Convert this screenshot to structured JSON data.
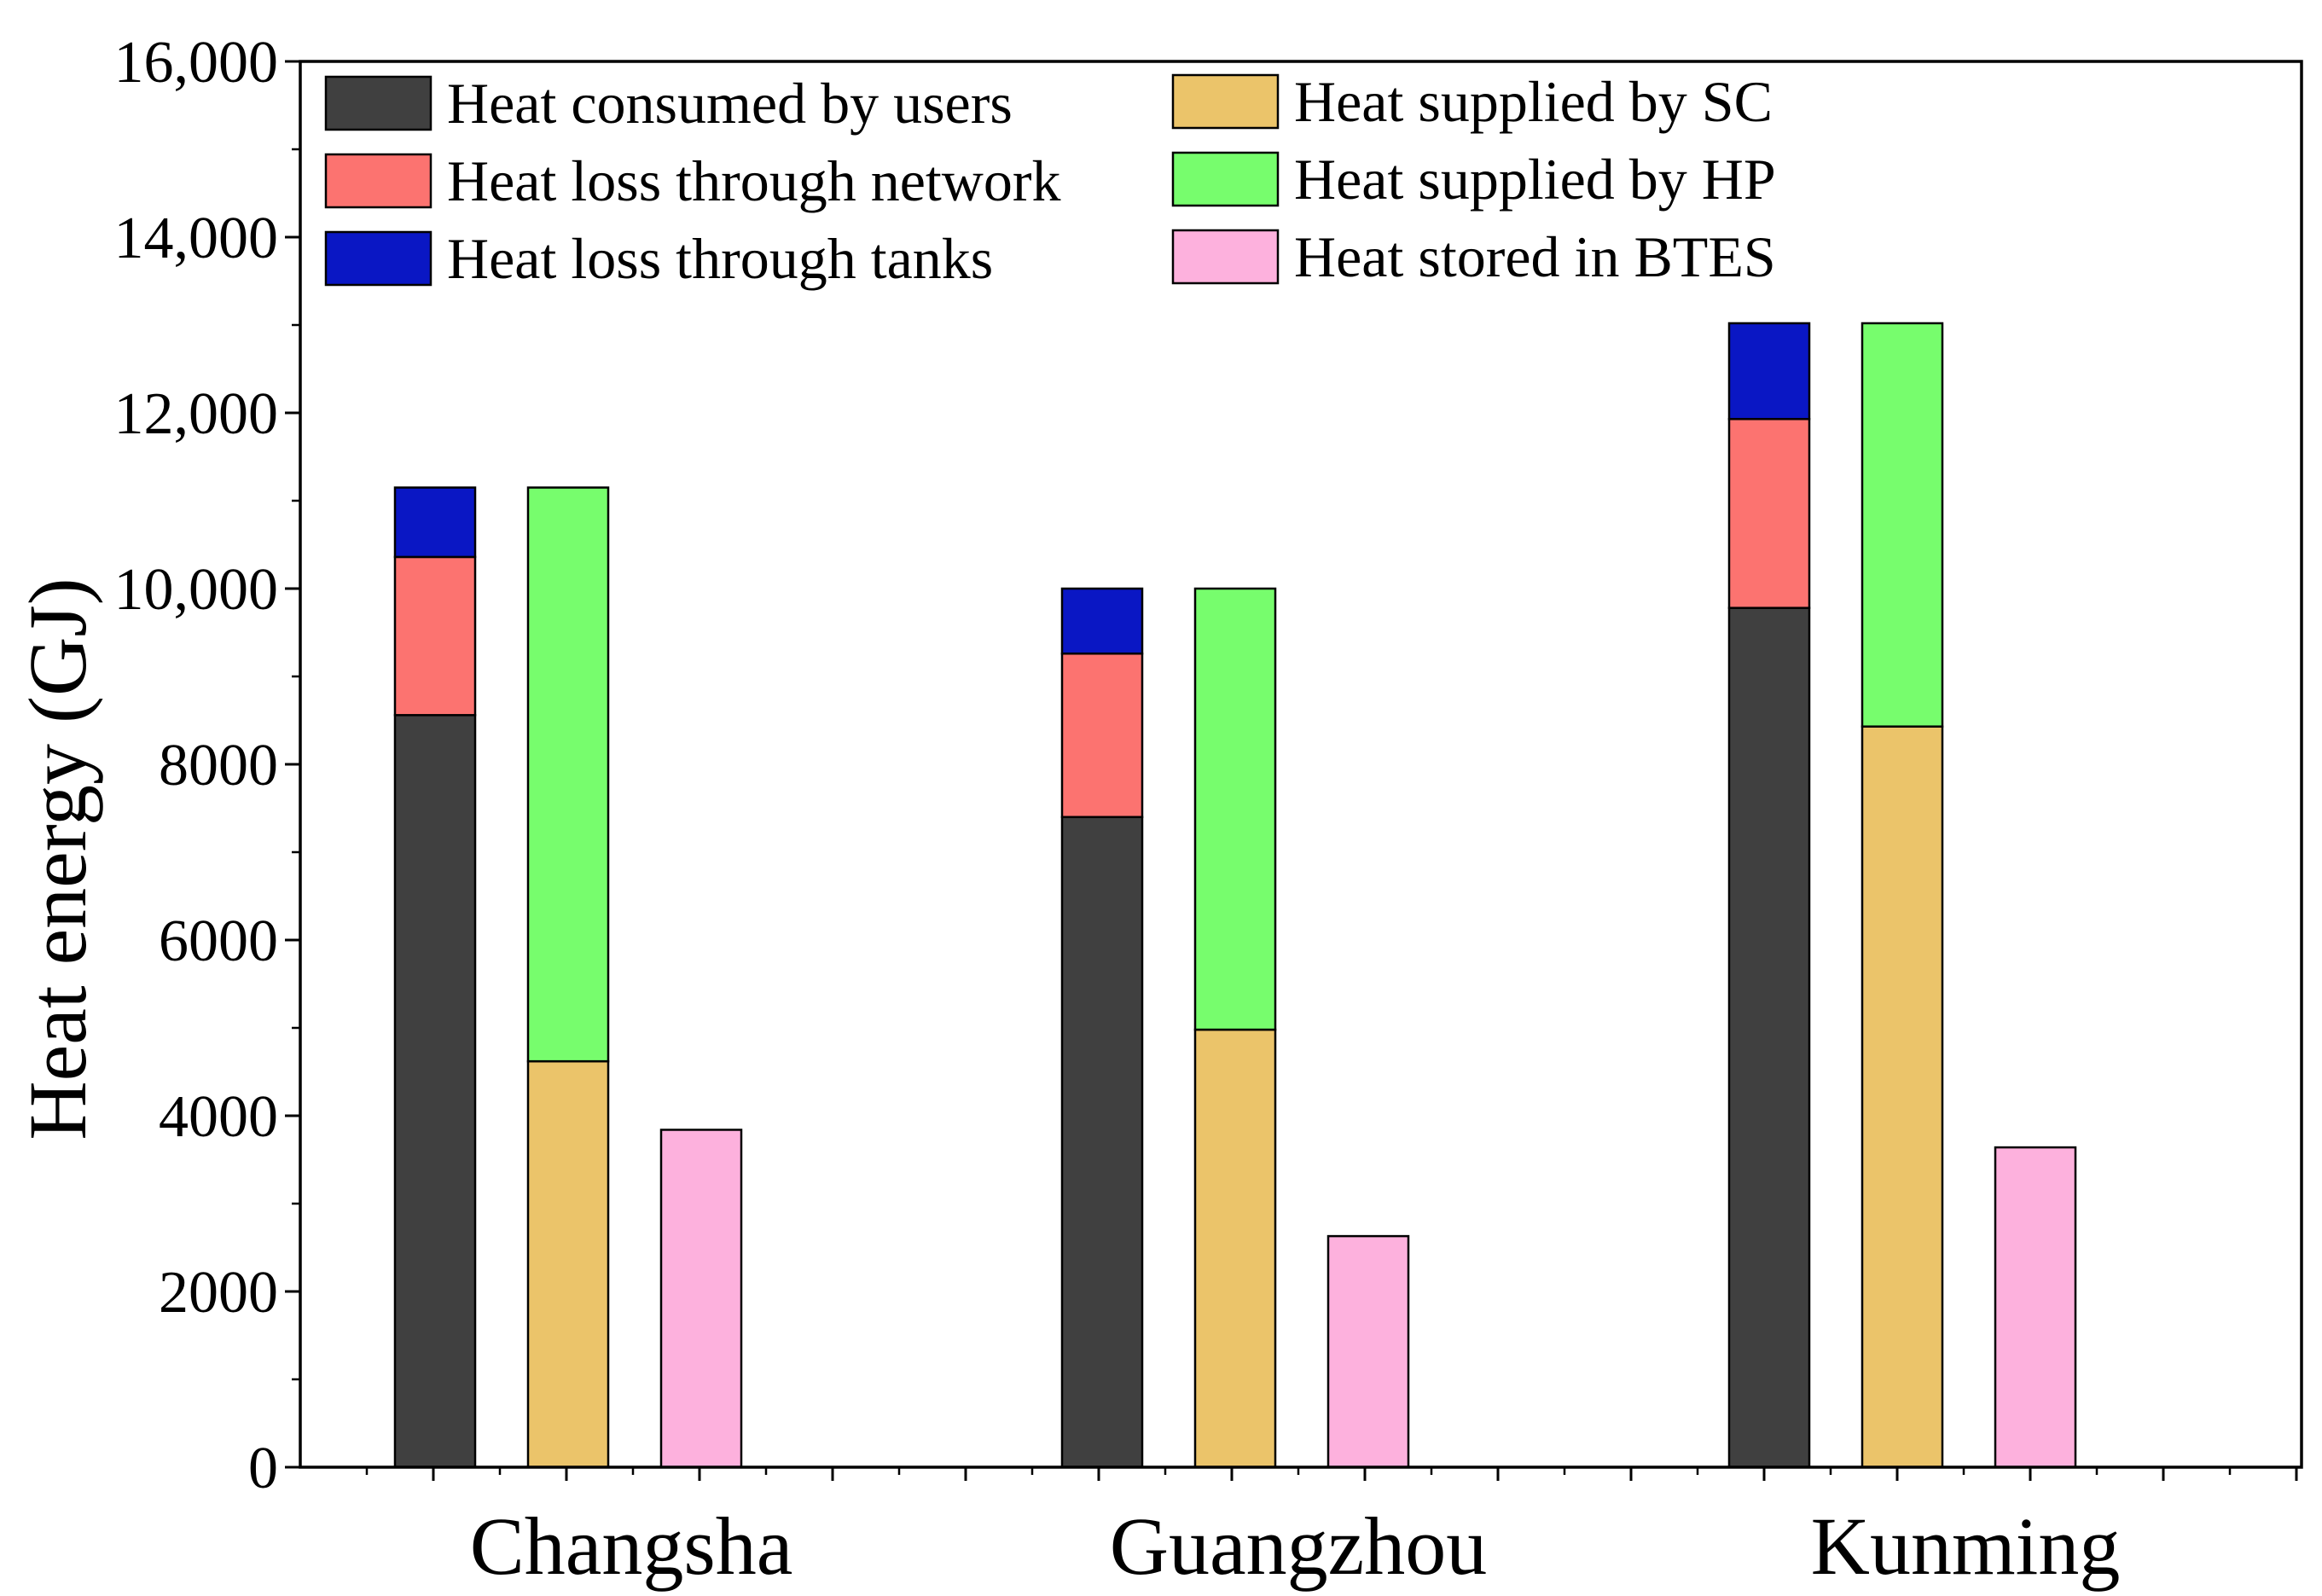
{
  "chart_data": {
    "type": "bar",
    "subtype": "grouped-stacked",
    "title": "",
    "xlabel": "",
    "ylabel": "Heat energy (GJ)",
    "ylim": [
      0,
      16000
    ],
    "yticks": [
      0,
      2000,
      4000,
      6000,
      8000,
      10000,
      12000,
      14000,
      16000
    ],
    "ytick_labels": [
      "0",
      "2000",
      "4000",
      "6000",
      "8000",
      "10,000",
      "12,000",
      "14,000",
      "16,000"
    ],
    "categories": [
      "Changsha",
      "Guangzhou",
      "Kunming"
    ],
    "colors": {
      "consumed": "#404040",
      "network_loss": "#fc7370",
      "tank_loss": "#0a17c4",
      "sc": "#ebc46a",
      "hp": "#77fd6d",
      "btes": "#fdb1dd"
    },
    "groups": [
      {
        "stack": "demand",
        "series": [
          {
            "key": "consumed",
            "name": "Heat consumed by users",
            "values": [
              8560,
              7400,
              9780
            ]
          },
          {
            "key": "network_loss",
            "name": "Heat loss through network",
            "values": [
              1800,
              1860,
              2150
            ]
          },
          {
            "key": "tank_loss",
            "name": "Heat loss through tanks",
            "values": [
              790,
              740,
              1090
            ]
          }
        ]
      },
      {
        "stack": "supply",
        "series": [
          {
            "key": "sc",
            "name": "Heat supplied by SC",
            "values": [
              4620,
              4980,
              8430
            ]
          },
          {
            "key": "hp",
            "name": "Heat supplied by HP",
            "values": [
              6530,
              5020,
              4590
            ]
          }
        ]
      },
      {
        "stack": "storage",
        "series": [
          {
            "key": "btes",
            "name": "Heat stored in BTES",
            "values": [
              3840,
              2630,
              3640
            ]
          }
        ]
      }
    ],
    "legend": [
      {
        "key": "consumed",
        "label": "Heat consumed by users"
      },
      {
        "key": "network_loss",
        "label": "Heat loss through network"
      },
      {
        "key": "tank_loss",
        "label": "Heat loss through tanks"
      },
      {
        "key": "sc",
        "label": "Heat supplied by SC"
      },
      {
        "key": "hp",
        "label": "Heat supplied by HP"
      },
      {
        "key": "btes",
        "label": "Heat stored in BTES"
      }
    ],
    "legend_position": "top-left",
    "grid": false
  }
}
